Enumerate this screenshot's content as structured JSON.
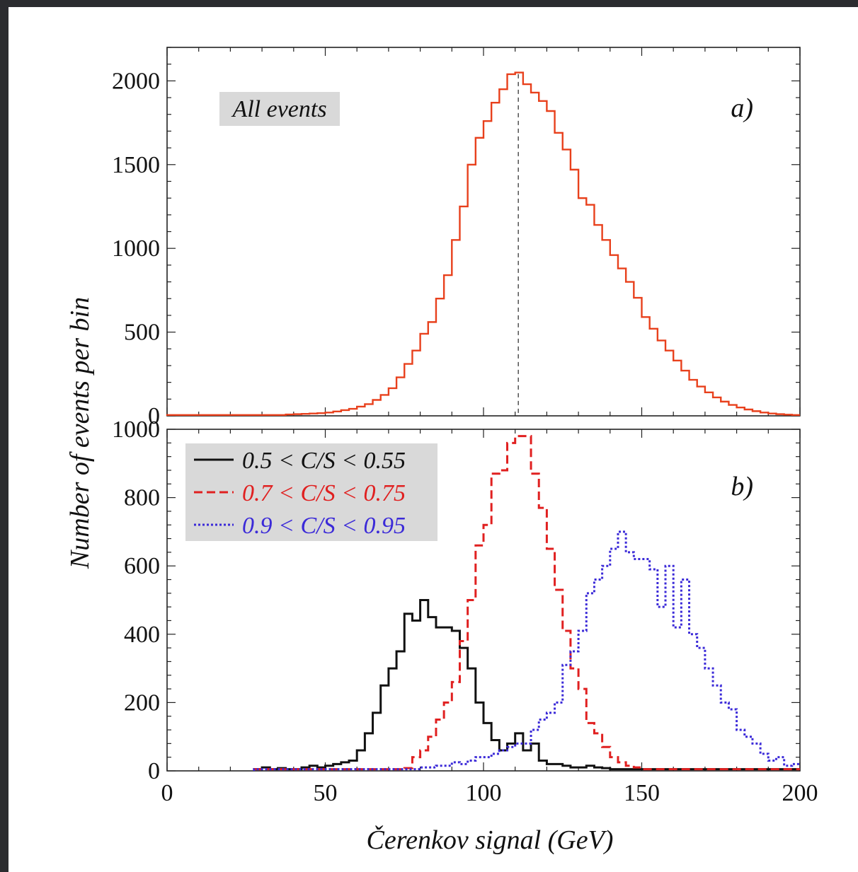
{
  "chart_data": [
    {
      "panel": "a)",
      "type": "histogram",
      "annotation": "All events",
      "xlim": [
        0,
        200
      ],
      "ylim": [
        0,
        2200
      ],
      "bin_width": 2.5,
      "x_ticks": [
        0,
        50,
        100,
        150,
        200
      ],
      "y_ticks": [
        0,
        500,
        1000,
        1500,
        2000
      ],
      "peak_line_x": 111,
      "series": [
        {
          "color": "#e8401c",
          "bins_start": [
            0,
            2.5,
            5,
            7.5,
            10,
            12.5,
            15,
            17.5,
            20,
            22.5,
            25,
            27.5,
            30,
            32.5,
            35,
            37.5,
            40,
            42.5,
            45,
            47.5,
            50,
            52.5,
            55,
            57.5,
            60,
            62.5,
            65,
            67.5,
            70,
            72.5,
            75,
            77.5,
            80,
            82.5,
            85,
            87.5,
            90,
            92.5,
            95,
            97.5,
            100,
            102.5,
            105,
            107.5,
            110,
            112.5,
            115,
            117.5,
            120,
            122.5,
            125,
            127.5,
            130,
            132.5,
            135,
            137.5,
            140,
            142.5,
            145,
            147.5,
            150,
            152.5,
            155,
            157.5,
            160,
            162.5,
            165,
            167.5,
            170,
            172.5,
            175,
            177.5,
            180,
            182.5,
            185,
            187.5,
            190,
            192.5,
            195,
            197.5
          ],
          "values": [
            5,
            5,
            5,
            5,
            5,
            5,
            5,
            5,
            5,
            5,
            5,
            5,
            5,
            5,
            5,
            8,
            10,
            12,
            14,
            16,
            20,
            26,
            34,
            42,
            55,
            70,
            95,
            125,
            165,
            230,
            310,
            390,
            490,
            560,
            700,
            840,
            1050,
            1250,
            1500,
            1660,
            1760,
            1870,
            1950,
            2040,
            2050,
            1980,
            1930,
            1880,
            1820,
            1690,
            1590,
            1470,
            1300,
            1260,
            1140,
            1050,
            960,
            880,
            800,
            705,
            590,
            520,
            450,
            390,
            330,
            270,
            215,
            175,
            140,
            110,
            85,
            65,
            50,
            38,
            28,
            20,
            14,
            10,
            7,
            5
          ]
        }
      ]
    },
    {
      "panel": "b)",
      "type": "histogram",
      "xlim": [
        0,
        200
      ],
      "ylim": [
        0,
        1000
      ],
      "bin_width": 2.5,
      "x_ticks": [
        0,
        50,
        100,
        150,
        200
      ],
      "y_ticks": [
        0,
        200,
        400,
        600,
        800,
        1000
      ],
      "xlabel": "Čerenkov signal (GeV)",
      "ylabel": "Number of events per bin",
      "legend": [
        {
          "label": "0.5 < C/S < 0.55",
          "color": "#111111",
          "style": "solid"
        },
        {
          "label": "0.7 < C/S < 0.75",
          "color": "#e02020",
          "style": "dashed"
        },
        {
          "label": "0.9 < C/S < 0.95",
          "color": "#3b2ad8",
          "style": "dotted"
        }
      ],
      "series": [
        {
          "color": "#111111",
          "bins_start": [
            27.5,
            30,
            32.5,
            35,
            37.5,
            40,
            42.5,
            45,
            47.5,
            50,
            52.5,
            55,
            57.5,
            60,
            62.5,
            65,
            67.5,
            70,
            72.5,
            75,
            77.5,
            80,
            82.5,
            85,
            87.5,
            90,
            92.5,
            95,
            97.5,
            100,
            102.5,
            105,
            107.5,
            110,
            112.5,
            115,
            117.5,
            120,
            122.5,
            125,
            127.5,
            130,
            132.5,
            135,
            137.5,
            140,
            142.5,
            145,
            147.5,
            150,
            152.5,
            155,
            157.5,
            160,
            162.5,
            165,
            167.5,
            170,
            172.5,
            175,
            177.5,
            180,
            182.5,
            185,
            187.5,
            190,
            192.5,
            195,
            197.5
          ],
          "values": [
            5,
            10,
            5,
            8,
            5,
            5,
            10,
            15,
            10,
            15,
            20,
            25,
            30,
            60,
            110,
            170,
            250,
            300,
            350,
            460,
            440,
            500,
            450,
            420,
            420,
            410,
            360,
            300,
            200,
            140,
            90,
            60,
            80,
            110,
            60,
            80,
            30,
            20,
            20,
            15,
            10,
            10,
            15,
            10,
            8,
            5,
            5,
            5,
            5,
            5,
            5,
            5,
            5,
            5,
            5,
            5,
            5,
            5,
            5,
            5,
            5,
            5,
            5,
            5,
            5,
            5,
            5,
            5,
            5
          ]
        },
        {
          "color": "#e02020",
          "bins_start": [
            27.5,
            30,
            32.5,
            35,
            37.5,
            40,
            42.5,
            45,
            47.5,
            50,
            52.5,
            55,
            57.5,
            60,
            62.5,
            65,
            67.5,
            70,
            72.5,
            75,
            77.5,
            80,
            82.5,
            85,
            87.5,
            90,
            92.5,
            95,
            97.5,
            100,
            102.5,
            105,
            107.5,
            110,
            112.5,
            115,
            117.5,
            120,
            122.5,
            125,
            127.5,
            130,
            132.5,
            135,
            137.5,
            140,
            142.5,
            145,
            147.5,
            150,
            152.5,
            155,
            157.5,
            160,
            162.5,
            165,
            167.5,
            170,
            172.5,
            175,
            177.5,
            180,
            182.5,
            185,
            187.5,
            190,
            192.5,
            195,
            197.5
          ],
          "values": [
            5,
            5,
            5,
            5,
            5,
            5,
            5,
            5,
            5,
            5,
            5,
            5,
            5,
            5,
            5,
            5,
            5,
            5,
            5,
            8,
            40,
            60,
            100,
            150,
            200,
            260,
            380,
            500,
            660,
            720,
            870,
            880,
            960,
            980,
            980,
            870,
            770,
            650,
            530,
            410,
            300,
            240,
            140,
            110,
            70,
            40,
            25,
            15,
            10,
            5,
            5,
            5,
            5,
            5,
            5,
            5,
            5,
            5,
            5,
            5,
            5,
            5,
            5,
            5,
            5,
            5,
            5,
            5,
            5
          ]
        },
        {
          "color": "#3b2ad8",
          "bins_start": [
            27.5,
            30,
            32.5,
            35,
            37.5,
            40,
            42.5,
            45,
            47.5,
            50,
            52.5,
            55,
            57.5,
            60,
            62.5,
            65,
            67.5,
            70,
            72.5,
            75,
            77.5,
            80,
            82.5,
            85,
            87.5,
            90,
            92.5,
            95,
            97.5,
            100,
            102.5,
            105,
            107.5,
            110,
            112.5,
            115,
            117.5,
            120,
            122.5,
            125,
            127.5,
            130,
            132.5,
            135,
            137.5,
            140,
            142.5,
            145,
            147.5,
            150,
            152.5,
            155,
            157.5,
            160,
            162.5,
            165,
            167.5,
            170,
            172.5,
            175,
            177.5,
            180,
            182.5,
            185,
            187.5,
            190,
            192.5,
            195,
            197.5
          ],
          "values": [
            5,
            5,
            5,
            5,
            5,
            5,
            5,
            5,
            5,
            5,
            5,
            5,
            5,
            5,
            5,
            5,
            5,
            5,
            5,
            5,
            5,
            10,
            10,
            15,
            15,
            25,
            20,
            30,
            40,
            40,
            50,
            60,
            70,
            80,
            80,
            120,
            150,
            170,
            200,
            310,
            350,
            410,
            520,
            560,
            600,
            650,
            700,
            640,
            620,
            620,
            590,
            480,
            600,
            420,
            560,
            400,
            360,
            300,
            250,
            200,
            180,
            120,
            100,
            80,
            50,
            30,
            40,
            15,
            20
          ]
        }
      ]
    }
  ]
}
